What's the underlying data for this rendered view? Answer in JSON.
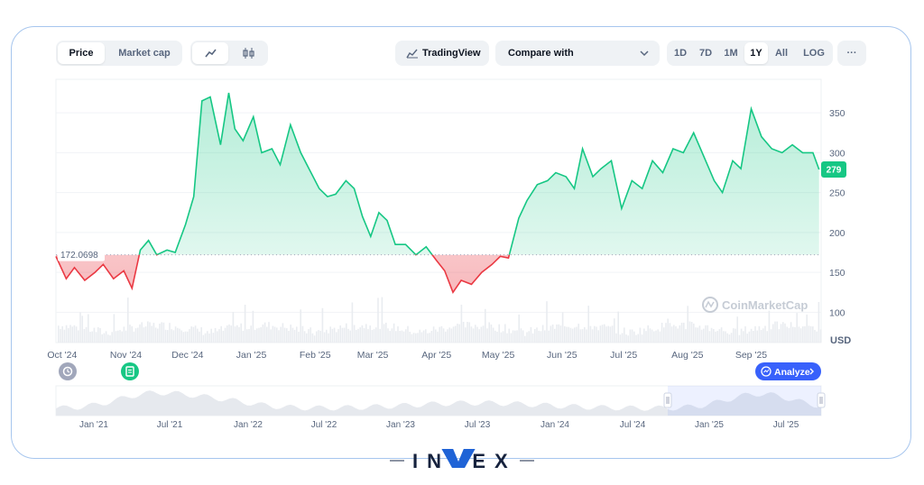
{
  "toolbar": {
    "price_tab": "Price",
    "marketcap_tab": "Market cap",
    "line_icon": "line-chart-icon",
    "candle_icon": "candlestick-icon",
    "tradingview": "TradingView",
    "tradingview_icon": "tradingview-chart-icon",
    "compare": "Compare with",
    "ranges": [
      "1D",
      "7D",
      "1M",
      "1Y",
      "All",
      "LOG"
    ],
    "active_range": "1Y",
    "more": "···"
  },
  "chart_data": {
    "type": "area",
    "unit_label": "USD",
    "baseline": 172.0698,
    "baseline_label": "172.0698",
    "current_price": 279,
    "current_price_label": "279",
    "ylim": [
      62,
      392
    ],
    "yticks": [
      100,
      150,
      200,
      250,
      300,
      350
    ],
    "xlim": [
      "2024-09-28",
      "2025-10-05"
    ],
    "xticks": [
      {
        "date": "2024-10-01",
        "label": "Oct '24"
      },
      {
        "date": "2024-11-01",
        "label": "Nov '24"
      },
      {
        "date": "2024-12-01",
        "label": "Dec '24"
      },
      {
        "date": "2025-01-01",
        "label": "Jan '25"
      },
      {
        "date": "2025-02-01",
        "label": "Feb '25"
      },
      {
        "date": "2025-03-01",
        "label": "Mar '25"
      },
      {
        "date": "2025-04-01",
        "label": "Apr '25"
      },
      {
        "date": "2025-05-01",
        "label": "May '25"
      },
      {
        "date": "2025-06-01",
        "label": "Jun '25"
      },
      {
        "date": "2025-07-01",
        "label": "Jul '25"
      },
      {
        "date": "2025-08-01",
        "label": "Aug '25"
      },
      {
        "date": "2025-09-01",
        "label": "Sep '25"
      }
    ],
    "grid": "horizontal",
    "above_color": "#16c784",
    "below_color": "#ea3943",
    "series": [
      {
        "x": [
          "2024-09-28",
          "2024-10-03",
          "2024-10-07",
          "2024-10-12",
          "2024-10-17",
          "2024-10-21",
          "2024-10-26",
          "2024-10-31",
          "2024-11-04",
          "2024-11-08",
          "2024-11-12",
          "2024-11-16",
          "2024-11-21",
          "2024-11-25",
          "2024-11-30",
          "2024-12-04",
          "2024-12-08",
          "2024-12-12",
          "2024-12-17",
          "2024-12-21",
          "2024-12-24",
          "2024-12-28",
          "2025-01-02",
          "2025-01-06",
          "2025-01-11",
          "2025-01-15",
          "2025-01-20",
          "2025-01-25",
          "2025-01-29",
          "2025-02-03",
          "2025-02-07",
          "2025-02-11",
          "2025-02-16",
          "2025-02-20",
          "2025-02-24",
          "2025-02-28",
          "2025-03-04",
          "2025-03-08",
          "2025-03-12",
          "2025-03-17",
          "2025-03-22",
          "2025-03-27",
          "2025-04-01",
          "2025-04-05",
          "2025-04-09",
          "2025-04-13",
          "2025-04-18",
          "2025-04-23",
          "2025-04-28",
          "2025-05-02",
          "2025-05-06",
          "2025-05-11",
          "2025-05-15",
          "2025-05-20",
          "2025-05-25",
          "2025-05-29",
          "2025-06-03",
          "2025-06-07",
          "2025-06-11",
          "2025-06-16",
          "2025-06-20",
          "2025-06-25",
          "2025-06-30",
          "2025-07-05",
          "2025-07-10",
          "2025-07-15",
          "2025-07-20",
          "2025-07-25",
          "2025-07-30",
          "2025-08-04",
          "2025-08-09",
          "2025-08-14",
          "2025-08-18",
          "2025-08-23",
          "2025-08-27",
          "2025-09-01",
          "2025-09-06",
          "2025-09-11",
          "2025-09-16",
          "2025-09-21",
          "2025-09-26",
          "2025-10-01",
          "2025-10-04"
        ],
        "y": [
          170,
          142,
          156,
          140,
          150,
          160,
          142,
          152,
          130,
          178,
          190,
          172,
          178,
          175,
          210,
          245,
          365,
          370,
          310,
          375,
          330,
          315,
          345,
          300,
          305,
          285,
          335,
          300,
          280,
          255,
          245,
          248,
          265,
          255,
          220,
          195,
          225,
          215,
          185,
          185,
          172,
          182,
          165,
          152,
          125,
          140,
          135,
          150,
          160,
          170,
          168,
          218,
          240,
          260,
          265,
          275,
          270,
          255,
          305,
          270,
          280,
          290,
          230,
          265,
          255,
          290,
          275,
          305,
          300,
          325,
          295,
          265,
          250,
          290,
          280,
          355,
          320,
          305,
          300,
          310,
          300,
          300,
          279
        ]
      }
    ],
    "navigator": {
      "xticks": [
        "Jan '21",
        "Jul '21",
        "Jan '22",
        "Jul '22",
        "Jan '23",
        "Jul '23",
        "Jan '24",
        "Jul '24",
        "Jan '25",
        "Jul '25"
      ]
    },
    "watermark": "CoinMarketCap",
    "analyze_label": "Analyze"
  },
  "brand": {
    "left": "IN",
    "right": "EX"
  }
}
